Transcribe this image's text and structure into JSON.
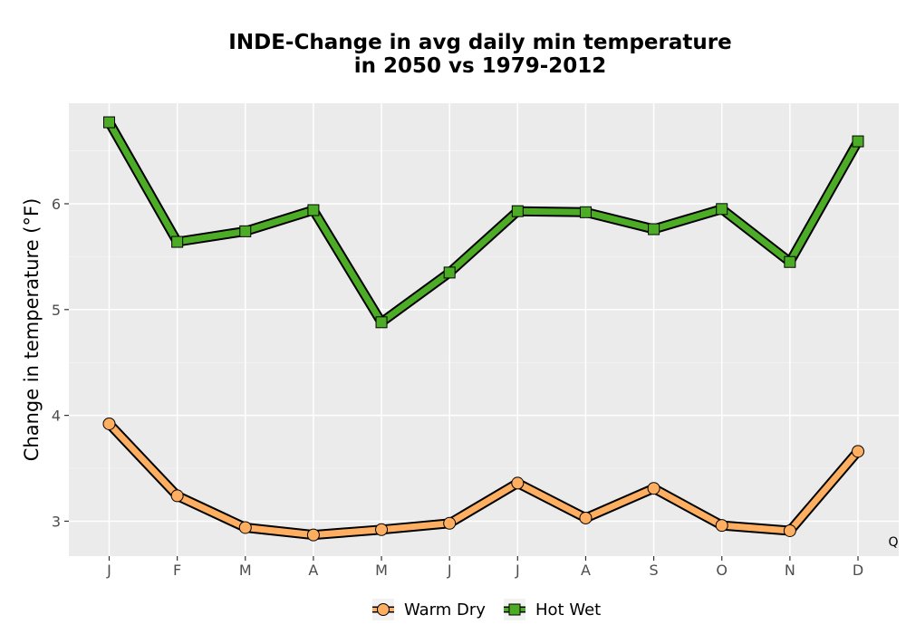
{
  "chart_data": {
    "type": "line",
    "title_lines": [
      "INDE-Change in avg daily min temperature",
      "in 2050 vs 1979-2012"
    ],
    "xlabel": "",
    "ylabel": "Change in temperature (°F)",
    "categories": [
      "J",
      "F",
      "M",
      "A",
      "M",
      "J",
      "J",
      "A",
      "S",
      "O",
      "N",
      "D"
    ],
    "yticks": [
      3,
      4,
      5,
      6
    ],
    "ylim": [
      2.67,
      6.95
    ],
    "grid": true,
    "legend_position": "bottom",
    "corner_label": "Q",
    "series": [
      {
        "name": "Warm Dry",
        "marker": "circle",
        "color": "#FDAE61",
        "values": [
          3.92,
          3.24,
          2.94,
          2.87,
          2.92,
          2.98,
          3.36,
          3.03,
          3.31,
          2.96,
          2.91,
          3.66
        ]
      },
      {
        "name": "Hot Wet",
        "marker": "square",
        "color": "#4DAC26",
        "values": [
          6.77,
          5.64,
          5.74,
          5.94,
          4.88,
          5.35,
          5.93,
          5.92,
          5.76,
          5.95,
          5.45,
          6.59
        ]
      }
    ]
  }
}
